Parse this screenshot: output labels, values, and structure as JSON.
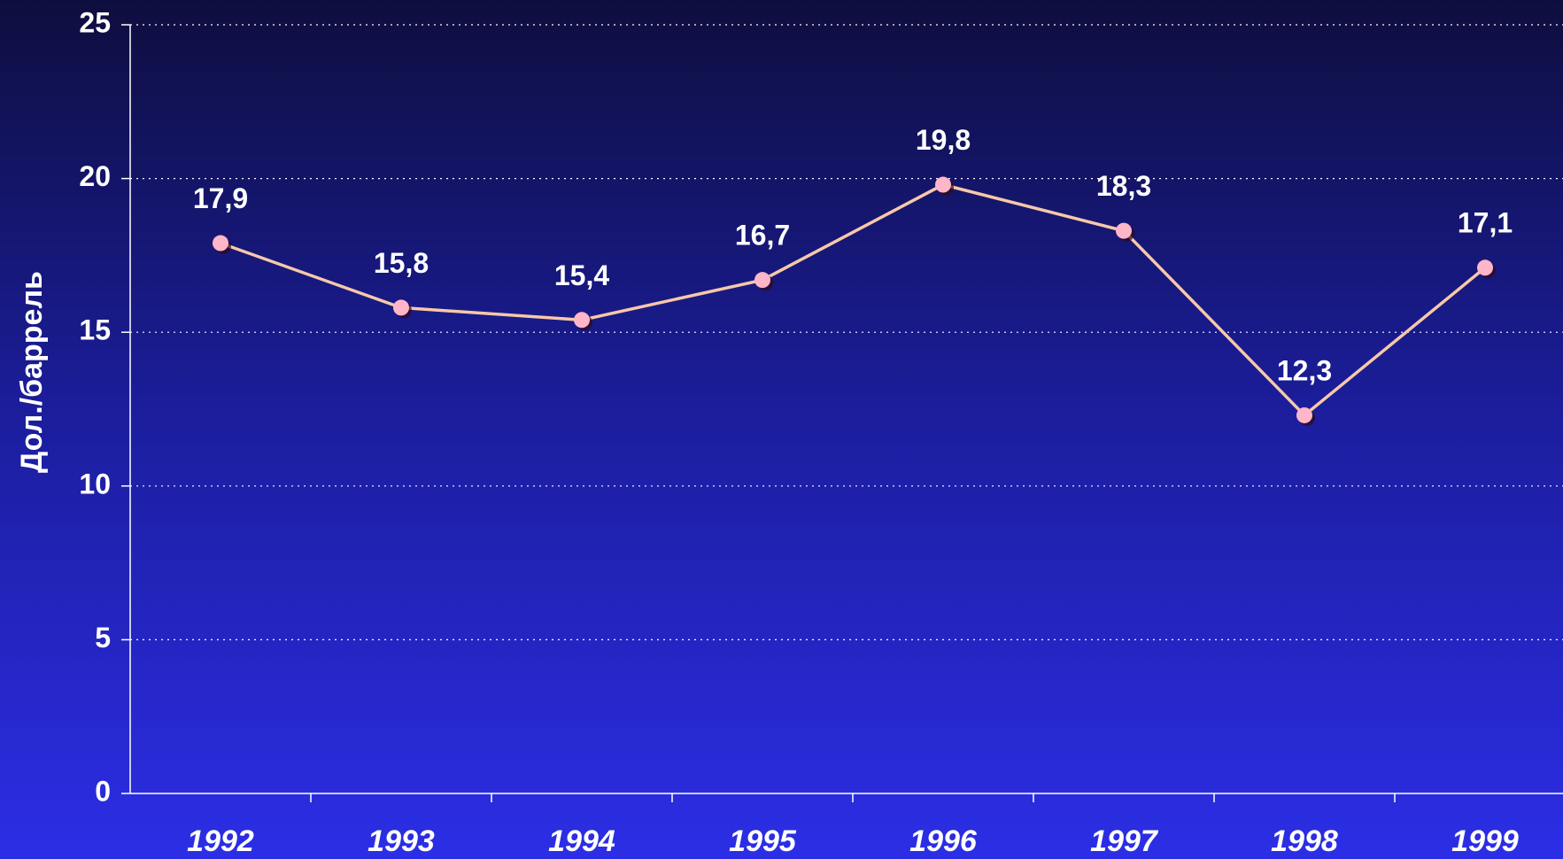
{
  "chart_data": {
    "type": "line",
    "y_label": "Дол./баррель",
    "categories": [
      "1992",
      "1993",
      "1994",
      "1995",
      "1996",
      "1997",
      "1998",
      "1999"
    ],
    "values": [
      17.9,
      15.8,
      15.4,
      16.7,
      19.8,
      18.3,
      12.3,
      17.1
    ],
    "value_labels": [
      "17,9",
      "15,8",
      "15,4",
      "16,7",
      "19,8",
      "18,3",
      "12,3",
      "17,1"
    ],
    "color": "#f8c8a8",
    "marker_color": "#ffb6c8",
    "ylim": [
      0,
      25
    ],
    "yticks": [
      0,
      5,
      10,
      15,
      20,
      25
    ],
    "grid": true
  }
}
